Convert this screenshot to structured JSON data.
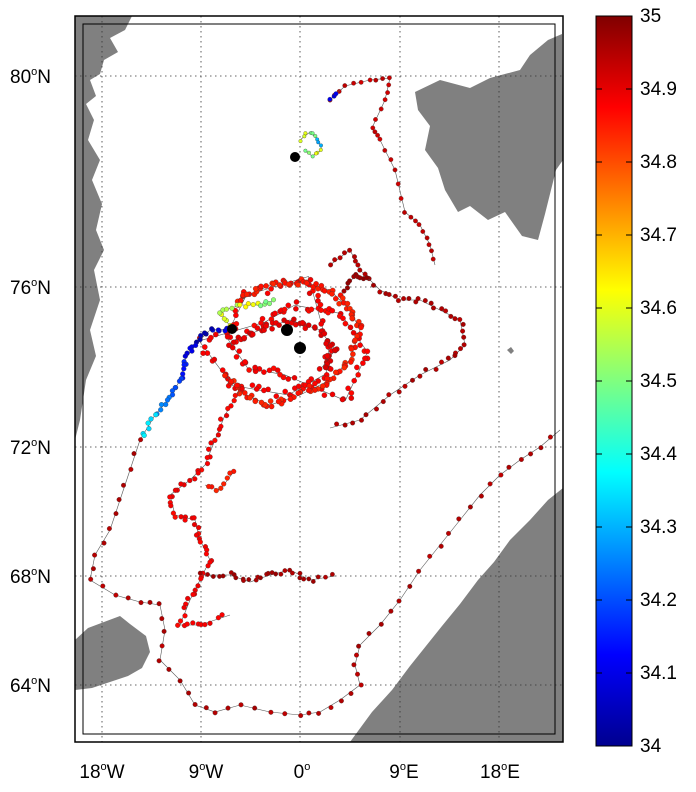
{
  "map": {
    "lat_labels": [
      {
        "text": "80",
        "unit": "o",
        "hemi": "N"
      },
      {
        "text": "76",
        "unit": "o",
        "hemi": "N"
      },
      {
        "text": "72",
        "unit": "o",
        "hemi": "N"
      },
      {
        "text": "68",
        "unit": "o",
        "hemi": "N"
      },
      {
        "text": "64",
        "unit": "o",
        "hemi": "N"
      }
    ],
    "lon_labels": [
      {
        "text": "18",
        "unit": "o",
        "hemi": "W"
      },
      {
        "text": "9",
        "unit": "o",
        "hemi": "W"
      },
      {
        "text": "0",
        "unit": "o",
        "hemi": ""
      },
      {
        "text": "9",
        "unit": "o",
        "hemi": "E"
      },
      {
        "text": "18",
        "unit": "o",
        "hemi": "E"
      }
    ],
    "land_color": "#808080",
    "grid": "dotted"
  },
  "colorbar": {
    "min": 34,
    "max": 35,
    "ticks": [
      "35",
      "34.9",
      "34.8",
      "34.7",
      "34.6",
      "34.5",
      "34.4",
      "34.3",
      "34.2",
      "34.1",
      "34"
    ],
    "colormap": "jet"
  }
}
